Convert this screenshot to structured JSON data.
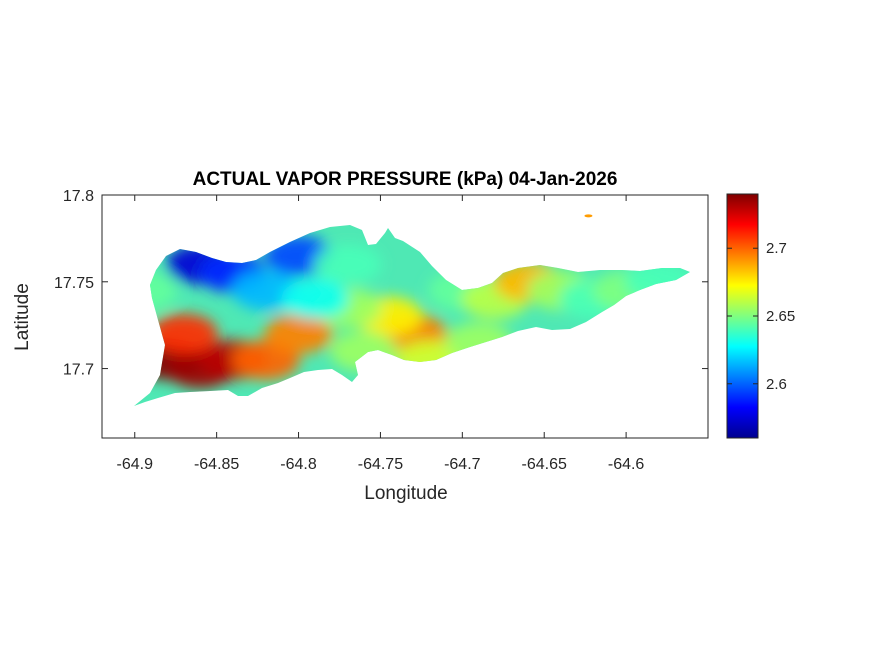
{
  "title": "ACTUAL VAPOR PRESSURE (kPa) 04-Jan-2026",
  "xlabel": "Longitude",
  "ylabel": "Latitude",
  "xticks": [
    "-64.9",
    "-64.85",
    "-64.8",
    "-64.75",
    "-64.7",
    "-64.65",
    "-64.6"
  ],
  "yticks": [
    "17.8",
    "17.75",
    "17.7"
  ],
  "colorbar": {
    "colormap": "jet",
    "min": 2.56,
    "max": 2.74,
    "ticks": [
      "2.7",
      "2.65",
      "2.6"
    ]
  },
  "chart_data": {
    "type": "heatmap",
    "xlim": [
      -64.92,
      -64.55
    ],
    "ylim": [
      17.66,
      17.8
    ],
    "grid": false,
    "variable": "ACTUAL VAPOR PRESSURE (kPa)",
    "blobs": [
      {
        "lon": -64.88,
        "lat": 17.705,
        "value": 2.745
      },
      {
        "lon": -64.86,
        "lat": 17.7,
        "value": 2.735
      },
      {
        "lon": -64.84,
        "lat": 17.705,
        "value": 2.73
      },
      {
        "lon": -64.87,
        "lat": 17.72,
        "value": 2.71
      },
      {
        "lon": -64.82,
        "lat": 17.705,
        "value": 2.7
      },
      {
        "lon": -64.8,
        "lat": 17.72,
        "value": 2.695
      },
      {
        "lon": -64.86,
        "lat": 17.76,
        "value": 2.575
      },
      {
        "lon": -64.84,
        "lat": 17.755,
        "value": 2.59
      },
      {
        "lon": -64.8,
        "lat": 17.765,
        "value": 2.595
      },
      {
        "lon": -64.82,
        "lat": 17.745,
        "value": 2.615
      },
      {
        "lon": -64.77,
        "lat": 17.76,
        "value": 2.64
      },
      {
        "lon": -64.73,
        "lat": 17.72,
        "value": 2.695
      },
      {
        "lon": -64.745,
        "lat": 17.73,
        "value": 2.675
      },
      {
        "lon": -64.77,
        "lat": 17.735,
        "value": 2.655
      },
      {
        "lon": -64.7,
        "lat": 17.745,
        "value": 2.645
      },
      {
        "lon": -64.68,
        "lat": 17.74,
        "value": 2.66
      },
      {
        "lon": -64.66,
        "lat": 17.75,
        "value": 2.685
      },
      {
        "lon": -64.64,
        "lat": 17.745,
        "value": 2.655
      },
      {
        "lon": -64.62,
        "lat": 17.74,
        "value": 2.64
      },
      {
        "lon": -64.6,
        "lat": 17.745,
        "value": 2.65
      },
      {
        "lon": -64.58,
        "lat": 17.75,
        "value": 2.64
      },
      {
        "lon": -64.72,
        "lat": 17.705,
        "value": 2.665
      },
      {
        "lon": -64.69,
        "lat": 17.715,
        "value": 2.655
      },
      {
        "lon": -64.895,
        "lat": 17.745,
        "value": 2.645
      },
      {
        "lon": -64.76,
        "lat": 17.71,
        "value": 2.655
      },
      {
        "lon": -64.79,
        "lat": 17.74,
        "value": 2.63
      },
      {
        "lon": -64.623,
        "lat": 17.788,
        "value": 2.69
      }
    ]
  }
}
